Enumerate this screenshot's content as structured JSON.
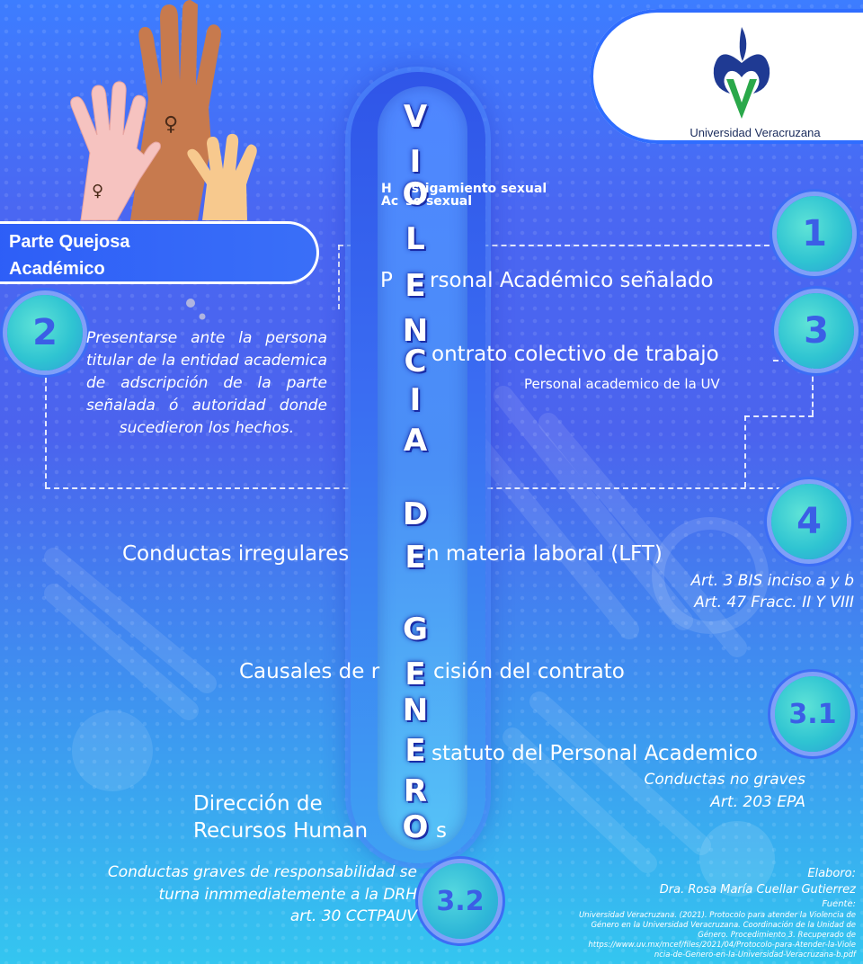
{
  "logo": {
    "name": "Universidad Veracruzana",
    "icon": "uv-flower-logo",
    "colors": {
      "blue": "#1f3a93",
      "green": "#2aa84a"
    }
  },
  "title_letters": [
    "V",
    "I",
    "O",
    "L",
    "E",
    "N",
    "C",
    "I",
    "A",
    "D",
    "E",
    "G",
    "E",
    "N",
    "E",
    "R",
    "O"
  ],
  "sidebar_header": {
    "line1": "Parte Quejosa",
    "line2": "Académico"
  },
  "hostigamiento": {
    "line1_a": "H",
    "line1_b": "stigamiento sexual",
    "line2_a": "Ac",
    "line2_b": "so sexual"
  },
  "steps": {
    "one": {
      "number": "1",
      "title_a": "P",
      "title_b": "rsonal Académico señalado"
    },
    "two": {
      "number": "2",
      "text": "Presentarse ante la persona titular de la entidad academica de adscripción de la parte señalada ó autoridad donde sucedieron los hechos."
    },
    "three": {
      "number": "3",
      "title_b": "ontrato colectivo de trabajo",
      "subtitle": "Personal academico de la UV"
    },
    "four": {
      "number": "4",
      "title_a": "Conductas irregulares",
      "title_b": "n materia laboral (LFT)",
      "ref1": "Art. 3 BIS inciso a y b",
      "ref2": "Art. 47 Fracc. II Y VIII"
    },
    "causales": {
      "text_a": "Causales de r",
      "text_b": "cisión del contrato"
    },
    "three_one": {
      "number": "3.1",
      "title_b": "statuto del Personal Academico",
      "sub1": "Conductas no graves",
      "sub2": "Art. 203 EPA"
    },
    "direccion": {
      "line1": "Dirección de",
      "line2_a": "Recursos Human",
      "line2_b": "s"
    },
    "three_two": {
      "number": "3.2",
      "line1": "Conductas graves de responsabilidad se",
      "line2": "turna inmmediatemente a la DRH",
      "line3": "art. 30  CCTPAUV"
    }
  },
  "credits": {
    "label": "Elaboro:",
    "author": "Dra. Rosa María Cuellar Gutierrez",
    "source_label": "Fuente:",
    "source_lines": [
      "Universidad Veracruzana. (2021). Protocolo para atender la Violencia de",
      "Género en la Universidad Veracruzana. Coordinación de la Unidad de",
      "Género. Procedimiento 3. Recuperado de",
      "https://www.uv.mx/mcef/files/2021/04/Protocolo-para-Atender-la-Viole",
      "ncia-de-Genero-en-la-Universidad-Veracruzana-b.pdf"
    ]
  },
  "decor": {
    "hands_icon": "raised-hands-illustration"
  }
}
